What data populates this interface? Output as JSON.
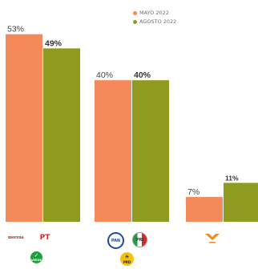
{
  "chart_data": {
    "type": "bar",
    "categories": [
      "morena / PT / Verde",
      "PAN / PRI / PRD",
      "MC"
    ],
    "series": [
      {
        "name": "MAYO 2022",
        "color": "#f4895a",
        "values": [
          53,
          40,
          7
        ],
        "labels": [
          "53%",
          "40%",
          "7%"
        ]
      },
      {
        "name": "AGOSTO 2022",
        "color": "#8f9a1e",
        "values": [
          49,
          40,
          11
        ],
        "labels": [
          "49%",
          "40%",
          "11%"
        ]
      }
    ],
    "ylim": [
      0,
      55
    ],
    "legend_position": "top-right",
    "grid": false
  },
  "parties": {
    "morena": "morena",
    "pt": "PT",
    "verde": "VERDE",
    "pan": "PAN",
    "pri": "PRI",
    "prd": "PRD"
  },
  "colors": {
    "morena": "#b5261e",
    "pt": "#e0201b",
    "verde": "#1f9e3f",
    "pan": "#1c4a9c",
    "pri": "#d9262c",
    "prd": "#f4c20d",
    "mc": "#f08a24"
  }
}
